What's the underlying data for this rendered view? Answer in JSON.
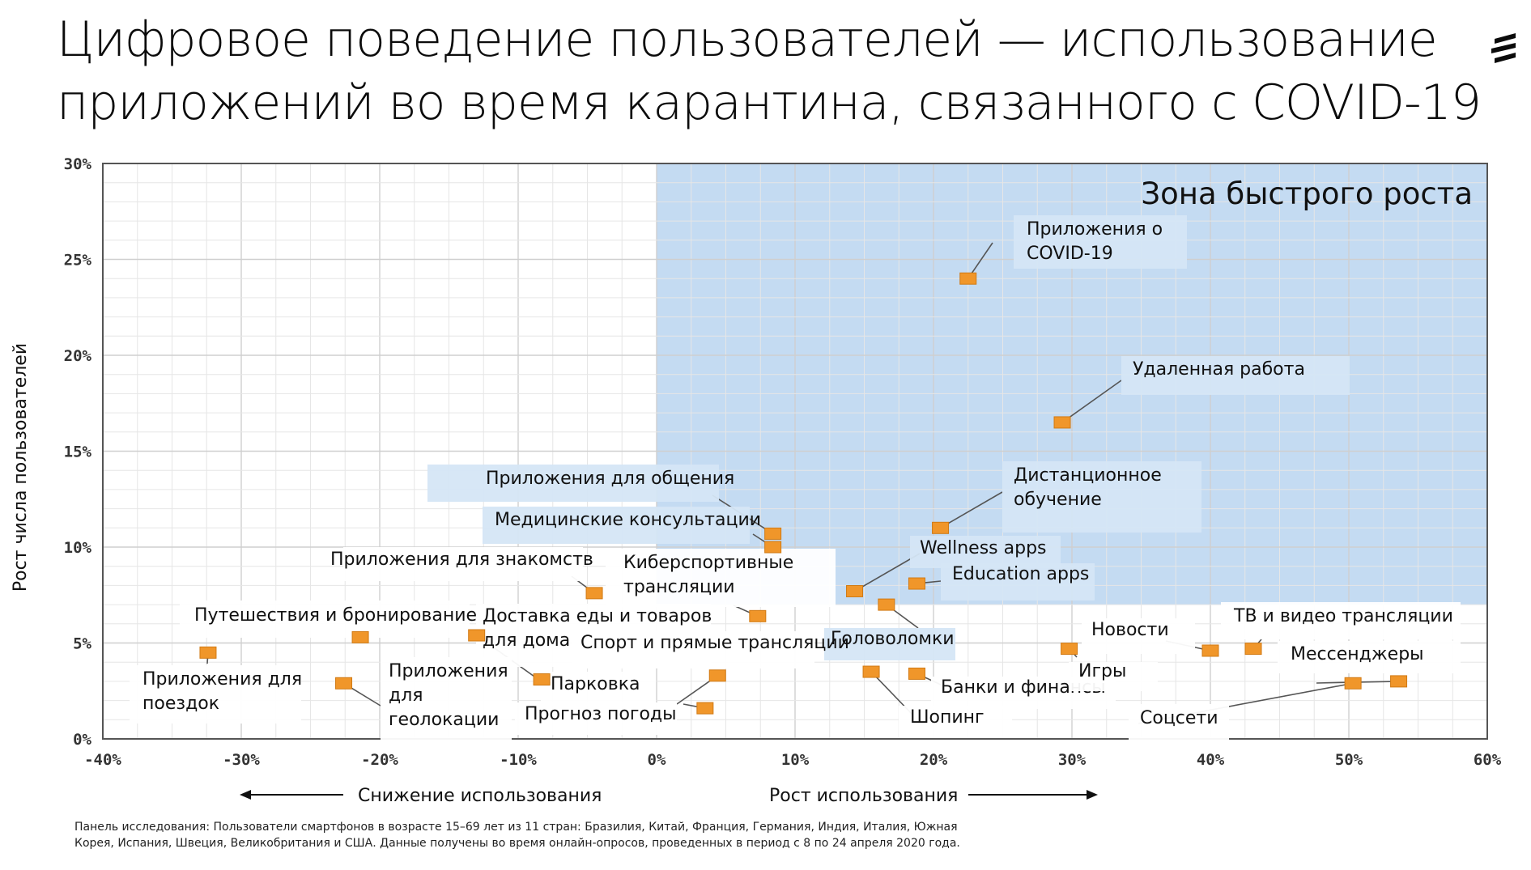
{
  "title_lines": [
    "Цифровое поведение пользователей — использование",
    "приложений во время карантина, связанного с COVID-19"
  ],
  "logo_icon": "ericsson-logo-icon",
  "footnote_lines": [
    "Панель исследования: Пользователи смартфонов в возрасте 15–69 лет из 11 стран: Бразилия, Китай, Франция, Германия, Индия, Италия, Южная",
    "Корея, Испания, Швеция, Великобритания и США. Данные получены во время онлайн-опросов, проведенных в период с 8 по 24 апреля 2020 года."
  ],
  "colors": {
    "zone": "#c4dbf2",
    "marker": "#f0962a",
    "marker_edge": "#d17a14",
    "grid": "#d9d9d9",
    "leader": "#555555"
  },
  "chart_data": {
    "type": "scatter",
    "title": "",
    "xlabel": "",
    "ylabel": "Рост числа пользователей",
    "xlim": [
      -40,
      60
    ],
    "ylim": [
      0,
      30
    ],
    "x_ticks": [
      -40,
      -30,
      -20,
      -10,
      0,
      10,
      20,
      30,
      40,
      50,
      60
    ],
    "x_tick_labels": [
      "-40%",
      "-30%",
      "-20%",
      "-10%",
      "0%",
      "10%",
      "20%",
      "30%",
      "40%",
      "50%",
      "60%"
    ],
    "y_ticks": [
      0,
      5,
      10,
      15,
      20,
      25,
      30
    ],
    "y_tick_labels": [
      "0%",
      "5%",
      "10%",
      "15%",
      "20%",
      "25%",
      "30%"
    ],
    "x_axis_left_label": "Снижение использования",
    "x_axis_right_label": "Рост использования",
    "highlight_zone": {
      "label": "Зона быстрого роста",
      "x_from": 0,
      "x_to": 60,
      "y_from": 7,
      "y_to": 30
    },
    "points": [
      {
        "label": "Приложения о COVID-19",
        "label_lines": [
          "Приложения о",
          "COVID-19"
        ],
        "x": 22.5,
        "y": 24
      },
      {
        "label": "Удаленная работа",
        "label_lines": [
          "Удаленная работа"
        ],
        "x": 29.3,
        "y": 16.5
      },
      {
        "label": "Дистанционное обучение",
        "label_lines": [
          "Дистанционное",
          "обучение"
        ],
        "x": 20.5,
        "y": 11
      },
      {
        "label": "Приложения для общения",
        "label_lines": [
          "Приложения для общения"
        ],
        "x": 8.4,
        "y": 10.7
      },
      {
        "label": "Медицинские консультации",
        "label_lines": [
          "Медицинские консультации"
        ],
        "x": 8.4,
        "y": 10
      },
      {
        "label": "Wellness apps",
        "label_lines": [
          "Wellness apps"
        ],
        "x": 14.3,
        "y": 7.7
      },
      {
        "label": "Education apps",
        "label_lines": [
          "Education apps"
        ],
        "x": 18.8,
        "y": 8.1
      },
      {
        "label": "Приложения для знакомств",
        "label_lines": [
          "Приложения для знакомств"
        ],
        "x": -4.5,
        "y": 7.6
      },
      {
        "label": "Киберспортивные трансляции",
        "label_lines": [
          "Киберспортивные",
          "трансляции"
        ],
        "x": 7.3,
        "y": 6.4
      },
      {
        "label": "Головоломки",
        "label_lines": [
          "Головоломки"
        ],
        "x": 16.6,
        "y": 7
      },
      {
        "label": "Путешествия и бронирование",
        "label_lines": [
          "Путешествия и бронирование"
        ],
        "x": -21.4,
        "y": 5.3
      },
      {
        "label": "Доставка еды и товаров для дома",
        "label_lines": [
          "Доставка еды и товаров",
          "для дома"
        ],
        "x": -13,
        "y": 5.4
      },
      {
        "label": "Спорт и прямые трансляции",
        "label_lines": [
          "Спорт и прямые трансляции"
        ],
        "x": 4.4,
        "y": 3.3
      },
      {
        "label": "Приложения для поездок",
        "label_lines": [
          "Приложения для",
          "поездок"
        ],
        "x": -32.4,
        "y": 4.5
      },
      {
        "label": "Приложения для геолокации",
        "label_lines": [
          "Приложения",
          "для",
          "геолокации"
        ],
        "x": -22.6,
        "y": 2.9
      },
      {
        "label": "Парковка",
        "label_lines": [
          "Парковка"
        ],
        "x": -8.3,
        "y": 3.1
      },
      {
        "label": "Прогноз погоды",
        "label_lines": [
          "Прогноз погоды"
        ],
        "x": 3.5,
        "y": 1.6
      },
      {
        "label": "Шопинг",
        "label_lines": [
          "Шопинг"
        ],
        "x": 15.5,
        "y": 3.5
      },
      {
        "label": "Банки и финансы",
        "label_lines": [
          "Банки и финансы"
        ],
        "x": 18.8,
        "y": 3.4
      },
      {
        "label": "Игры",
        "label_lines": [
          "Игры"
        ],
        "x": 29.8,
        "y": 4.7
      },
      {
        "label": "Новости",
        "label_lines": [
          "Новости"
        ],
        "x": 40,
        "y": 4.6
      },
      {
        "label": "ТВ и видео трансляции",
        "label_lines": [
          "ТВ и видео трансляции"
        ],
        "x": 43.1,
        "y": 4.7
      },
      {
        "label": "Соцсети",
        "label_lines": [
          "Соцсети"
        ],
        "x": 50.3,
        "y": 2.9
      },
      {
        "label": "Мессенджеры",
        "label_lines": [
          "Мессенджеры"
        ],
        "x": 53.6,
        "y": 3
      }
    ]
  }
}
